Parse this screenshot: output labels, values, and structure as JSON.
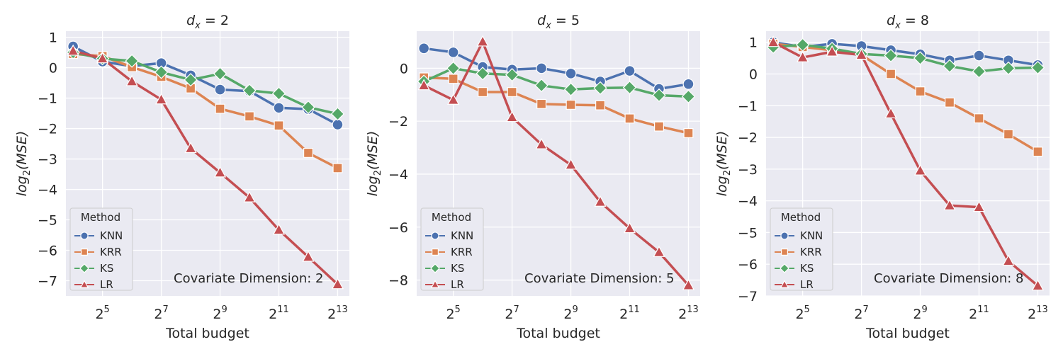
{
  "chart_data": [
    {
      "type": "line",
      "title": {
        "base": "d",
        "sub": "x",
        "eq": " = 2"
      },
      "xlabel": "Total budget",
      "ylabel": {
        "base": "log",
        "sub": "2",
        "rest": "(MSE)"
      },
      "x_scale": "log2",
      "x_ticks": [
        32,
        128,
        512,
        2048,
        8192
      ],
      "x_tick_labels": [
        {
          "base": "2",
          "exp": "5"
        },
        {
          "base": "2",
          "exp": "7"
        },
        {
          "base": "2",
          "exp": "9"
        },
        {
          "base": "2",
          "exp": "11"
        },
        {
          "base": "2",
          "exp": "13"
        }
      ],
      "xlim": [
        13.5,
        10800
      ],
      "ylim": [
        -7.5,
        1.2
      ],
      "y_ticks": [
        1,
        0,
        -1,
        -2,
        -3,
        -4,
        -5,
        -6,
        -7
      ],
      "y_tick_labels": [
        "1",
        "0",
        "−1",
        "−2",
        "−3",
        "−4",
        "−5",
        "−6",
        "−7"
      ],
      "x": [
        16,
        32,
        64,
        128,
        256,
        512,
        1024,
        2048,
        4096,
        8192
      ],
      "annotation": "Covariate Dimension: 2",
      "grid": true,
      "legend": {
        "title": "Method",
        "placement": "lower-left"
      },
      "series": [
        {
          "name": "KNN",
          "color": "#4c72b0",
          "marker": "circle",
          "values": [
            0.7,
            0.2,
            0.05,
            0.15,
            -0.25,
            -0.72,
            -0.77,
            -1.32,
            -1.36,
            -1.87
          ]
        },
        {
          "name": "KRR",
          "color": "#dd8452",
          "marker": "square",
          "values": [
            0.45,
            0.38,
            0.02,
            -0.3,
            -0.68,
            -1.35,
            -1.6,
            -1.9,
            -2.8,
            -3.3
          ]
        },
        {
          "name": "KS",
          "color": "#55a868",
          "marker": "diamond",
          "values": [
            0.5,
            0.3,
            0.22,
            -0.15,
            -0.4,
            -0.2,
            -0.75,
            -0.85,
            -1.3,
            -1.52
          ]
        },
        {
          "name": "LR",
          "color": "#c44e52",
          "marker": "triangle",
          "values": [
            0.55,
            0.3,
            -0.45,
            -1.05,
            -2.65,
            -3.45,
            -4.27,
            -5.33,
            -6.22,
            -7.12
          ]
        }
      ]
    },
    {
      "type": "line",
      "title": {
        "base": "d",
        "sub": "x",
        "eq": " = 5"
      },
      "xlabel": "Total budget",
      "ylabel": {
        "base": "log",
        "sub": "2",
        "rest": "(MSE)"
      },
      "x_scale": "log2",
      "x_ticks": [
        32,
        128,
        512,
        2048,
        8192
      ],
      "x_tick_labels": [
        {
          "base": "2",
          "exp": "5"
        },
        {
          "base": "2",
          "exp": "7"
        },
        {
          "base": "2",
          "exp": "9"
        },
        {
          "base": "2",
          "exp": "11"
        },
        {
          "base": "2",
          "exp": "13"
        }
      ],
      "xlim": [
        13.5,
        10800
      ],
      "ylim": [
        -8.6,
        1.4
      ],
      "y_ticks": [
        0,
        -2,
        -4,
        -6,
        -8
      ],
      "y_tick_labels": [
        "0",
        "−2",
        "−4",
        "−6",
        "−8"
      ],
      "x": [
        16,
        32,
        64,
        128,
        256,
        512,
        1024,
        2048,
        4096,
        8192
      ],
      "annotation": "Covariate Dimension: 5",
      "grid": true,
      "legend": {
        "title": "Method",
        "placement": "lower-left"
      },
      "series": [
        {
          "name": "KNN",
          "color": "#4c72b0",
          "marker": "circle",
          "values": [
            0.75,
            0.6,
            0.05,
            -0.05,
            0.0,
            -0.2,
            -0.5,
            -0.1,
            -0.78,
            -0.6
          ]
        },
        {
          "name": "KRR",
          "color": "#dd8452",
          "marker": "square",
          "values": [
            -0.35,
            -0.4,
            -0.9,
            -0.9,
            -1.35,
            -1.38,
            -1.4,
            -1.9,
            -2.2,
            -2.45
          ]
        },
        {
          "name": "KS",
          "color": "#55a868",
          "marker": "diamond",
          "values": [
            -0.5,
            0.0,
            -0.2,
            -0.25,
            -0.65,
            -0.8,
            -0.75,
            -0.73,
            -1.02,
            -1.07
          ]
        },
        {
          "name": "LR",
          "color": "#c44e52",
          "marker": "triangle",
          "values": [
            -0.65,
            -1.2,
            1.0,
            -1.85,
            -2.88,
            -3.65,
            -5.05,
            -6.05,
            -6.95,
            -8.2
          ]
        }
      ]
    },
    {
      "type": "line",
      "title": {
        "base": "d",
        "sub": "x",
        "eq": " = 8"
      },
      "xlabel": "Total budget",
      "ylabel": {
        "base": "log",
        "sub": "2",
        "rest": "(MSE)"
      },
      "x_scale": "log2",
      "x_ticks": [
        32,
        128,
        512,
        2048,
        8192
      ],
      "x_tick_labels": [
        {
          "base": "2",
          "exp": "5"
        },
        {
          "base": "2",
          "exp": "7"
        },
        {
          "base": "2",
          "exp": "9"
        },
        {
          "base": "2",
          "exp": "11"
        },
        {
          "base": "2",
          "exp": "13"
        }
      ],
      "xlim": [
        13.5,
        10800
      ],
      "ylim": [
        -7.0,
        1.35
      ],
      "y_ticks": [
        1,
        0,
        -1,
        -2,
        -3,
        -4,
        -5,
        -6,
        -7
      ],
      "y_tick_labels": [
        "1",
        "0",
        "−1",
        "−2",
        "−3",
        "−4",
        "−5",
        "−6",
        "−7"
      ],
      "x": [
        16,
        32,
        64,
        128,
        256,
        512,
        1024,
        2048,
        4096,
        8192
      ],
      "annotation": "Covariate Dimension: 8",
      "grid": true,
      "legend": {
        "title": "Method",
        "placement": "lower-left"
      },
      "series": [
        {
          "name": "KNN",
          "color": "#4c72b0",
          "marker": "circle",
          "values": [
            1.0,
            0.85,
            0.95,
            0.88,
            0.75,
            0.62,
            0.43,
            0.58,
            0.43,
            0.28
          ]
        },
        {
          "name": "KRR",
          "color": "#dd8452",
          "marker": "square",
          "values": [
            0.95,
            0.85,
            0.75,
            0.6,
            0.0,
            -0.55,
            -0.9,
            -1.4,
            -1.9,
            -2.45
          ]
        },
        {
          "name": "KS",
          "color": "#55a868",
          "marker": "diamond",
          "values": [
            0.85,
            0.92,
            0.8,
            0.63,
            0.58,
            0.5,
            0.25,
            0.08,
            0.18,
            0.2
          ]
        },
        {
          "name": "LR",
          "color": "#c44e52",
          "marker": "triangle",
          "values": [
            1.0,
            0.52,
            0.7,
            0.6,
            -1.25,
            -3.05,
            -4.15,
            -4.2,
            -5.9,
            -6.68
          ]
        }
      ]
    }
  ]
}
